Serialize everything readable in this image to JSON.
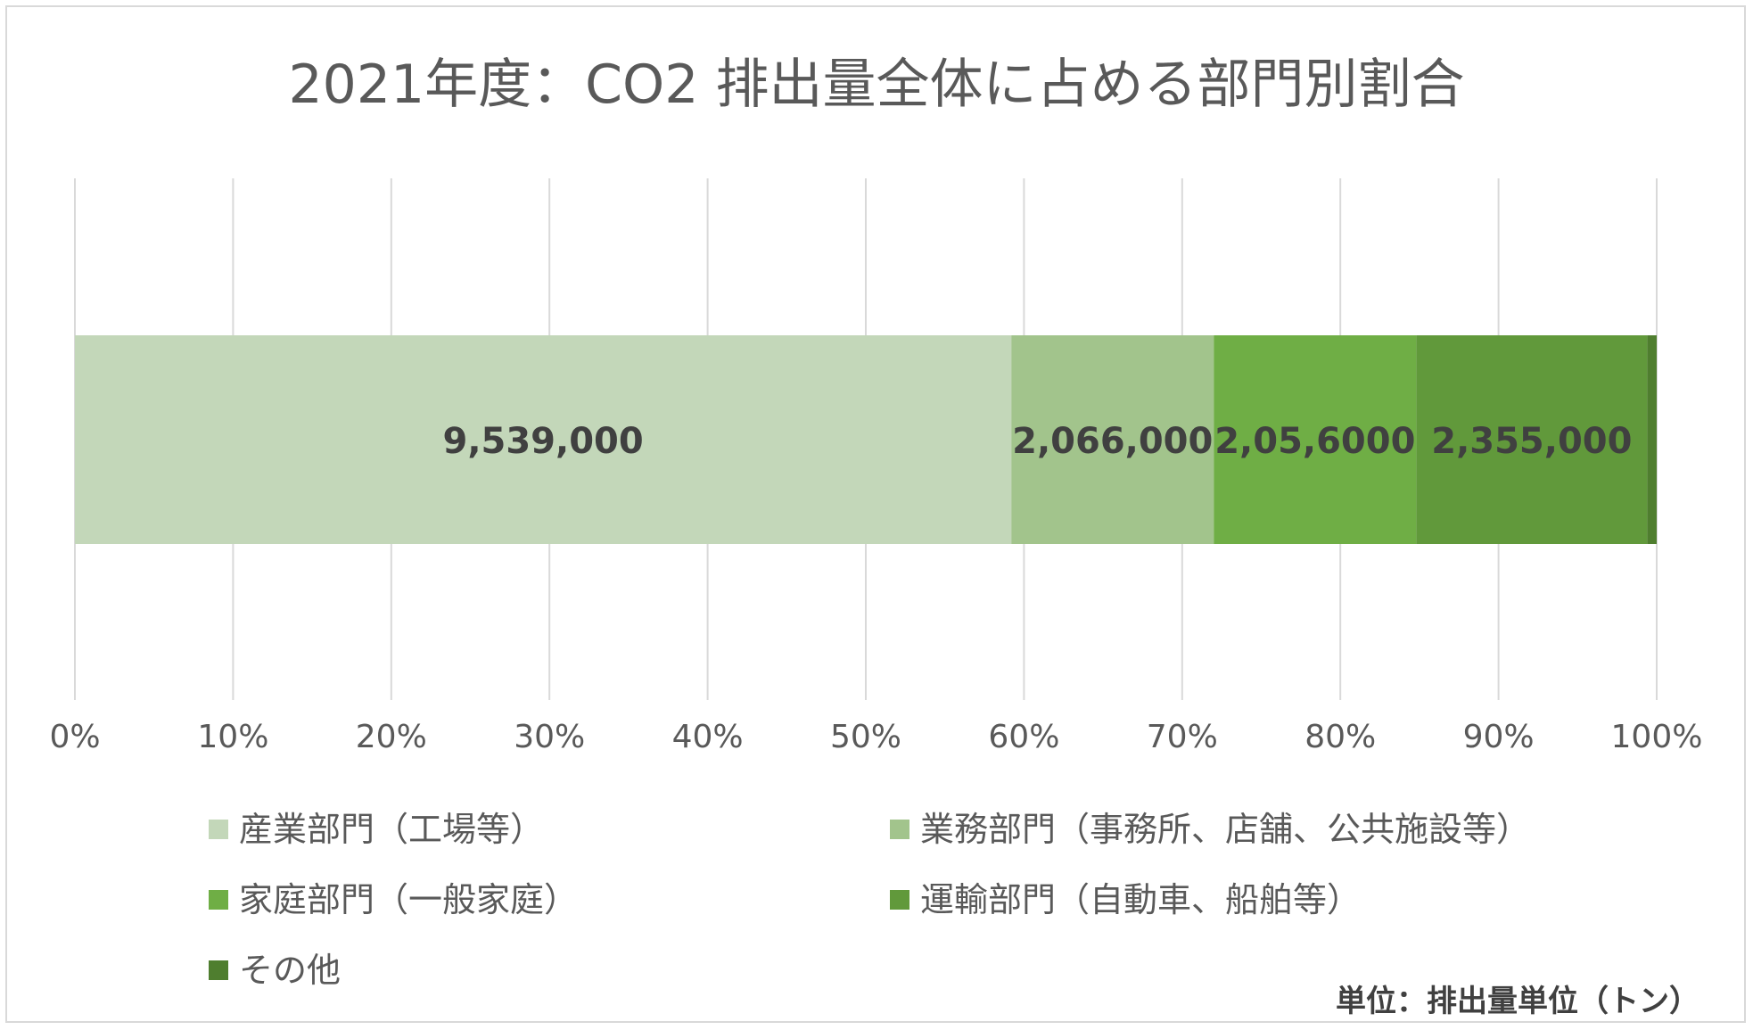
{
  "chart_data": {
    "type": "bar",
    "orientation": "horizontal",
    "stacked": "percent",
    "title": "2021年度：CO2 排出量全体に占める部門別割合",
    "xlim": [
      0,
      100
    ],
    "x_ticks": [
      "0%",
      "10%",
      "20%",
      "30%",
      "40%",
      "50%",
      "60%",
      "70%",
      "80%",
      "90%",
      "100%"
    ],
    "grid": true,
    "legend_position": "bottom",
    "series": [
      {
        "name": "産業部門（工場等）",
        "percent": 59.2,
        "value": 9539000,
        "label": "9,539,000",
        "color": "#c3d7b9"
      },
      {
        "name": "業務部門（事務所、店舗、公共施設等）",
        "percent": 12.8,
        "value": 2066000,
        "label": "2,066,000",
        "color": "#a2c48c"
      },
      {
        "name": "家庭部門（一般家庭）",
        "percent": 12.8,
        "value": 2056000,
        "label": "2,05,6000",
        "color": "#6fae45"
      },
      {
        "name": "運輸部門（自動車、船舶等）",
        "percent": 14.6,
        "value": 2355000,
        "label": "2,355,000",
        "color": "#61993b"
      },
      {
        "name": "その他",
        "percent": 0.6,
        "value": null,
        "label": "",
        "color": "#4f7e2f"
      }
    ],
    "note": "単位：排出量単位（トン）"
  }
}
